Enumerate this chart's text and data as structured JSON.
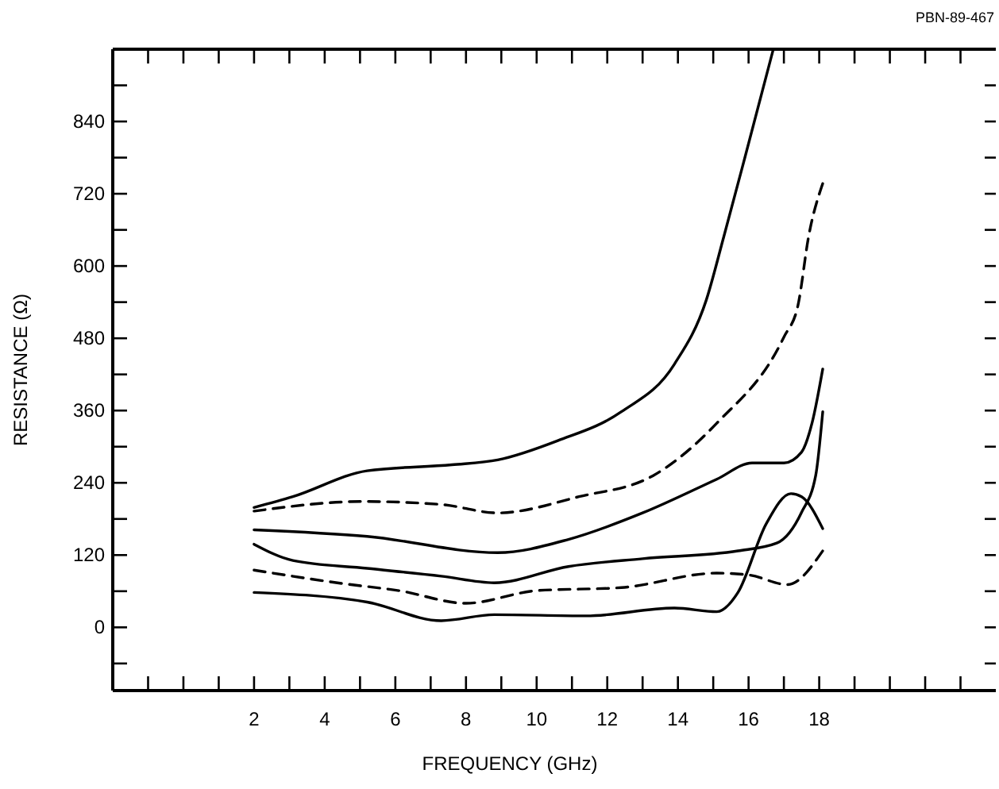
{
  "chart_data": {
    "type": "line",
    "xlabel": "FREQUENCY (GHz)",
    "ylabel": "RESISTANCE (Ω)",
    "annotations": [
      "PBN-89-467"
    ],
    "xlim": [
      -2,
      23
    ],
    "ylim": [
      -105,
      960
    ],
    "xticks": [
      {
        "value": -1,
        "label": null
      },
      {
        "value": 0,
        "label": null
      },
      {
        "value": 1,
        "label": null
      },
      2,
      {
        "value": 3,
        "label": null
      },
      4,
      {
        "value": 5,
        "label": null
      },
      6,
      {
        "value": 7,
        "label": null
      },
      8,
      {
        "value": 9,
        "label": null
      },
      10,
      {
        "value": 11,
        "label": null
      },
      12,
      {
        "value": 13,
        "label": null
      },
      14,
      {
        "value": 15,
        "label": null
      },
      16,
      {
        "value": 17,
        "label": null
      },
      18,
      {
        "value": 19,
        "label": null
      },
      {
        "value": 20,
        "label": null
      },
      {
        "value": 21,
        "label": null
      },
      {
        "value": 22,
        "label": null
      }
    ],
    "yticks": [
      {
        "value": -60,
        "label": null
      },
      0,
      {
        "value": 60,
        "label": null
      },
      120,
      {
        "value": 180,
        "label": null
      },
      240,
      {
        "value": 300,
        "label": null
      },
      360,
      {
        "value": 420,
        "label": null
      },
      480,
      {
        "value": 540,
        "label": null
      },
      600,
      {
        "value": 660,
        "label": null
      },
      720,
      {
        "value": 780,
        "label": null
      },
      840,
      {
        "value": 900,
        "label": null
      }
    ],
    "grid": false,
    "marker": "none",
    "series": [
      {
        "color": "#000000",
        "line_style": "solid",
        "x": [
          2,
          3.1,
          5.2,
          7.6,
          8.9,
          10.6,
          12.4,
          13.9,
          14.8,
          15.3,
          15.9,
          16.7
        ],
        "values": [
          199,
          217,
          260,
          270,
          278,
          310,
          358,
          437,
          543,
          649,
          781,
          960
        ]
      },
      {
        "color": "#000000",
        "line_style": "dashed",
        "x": [
          2,
          5.1,
          7.3,
          8.9,
          11.2,
          13.3,
          15.1,
          17,
          17.4,
          17.7,
          18.1
        ],
        "values": [
          193,
          209,
          204,
          190,
          217,
          252,
          339,
          482,
          535,
          649,
          737
        ]
      },
      {
        "color": "#000000",
        "line_style": "solid",
        "x": [
          2,
          5.2,
          8.9,
          10.9,
          13,
          15.1,
          16.1,
          17,
          17.5,
          17.8,
          18.1
        ],
        "values": [
          162,
          151,
          124,
          146,
          190,
          246,
          273,
          273,
          291,
          340,
          429
        ]
      },
      {
        "color": "#000000",
        "line_style": "solid",
        "x": [
          2,
          3.1,
          5.2,
          7.3,
          8.8,
          10.9,
          13,
          15.7,
          16.8,
          17.5,
          17.9,
          18.1
        ],
        "values": [
          138,
          111,
          98,
          85,
          74,
          101,
          114,
          127,
          140,
          191,
          252,
          358
        ]
      },
      {
        "color": "#000000",
        "line_style": "dashed",
        "x": [
          2,
          4.6,
          6.1,
          8,
          10,
          12.4,
          15.1,
          16,
          17.1,
          18.1
        ],
        "values": [
          95,
          72,
          61,
          40,
          61,
          66,
          90,
          87,
          71,
          127
        ]
      },
      {
        "color": "#000000",
        "line_style": "solid",
        "x": [
          2,
          5.2,
          7.3,
          8.8,
          11.4,
          13.9,
          15.1,
          15.7,
          16.5,
          17.2,
          17.5,
          18.1
        ],
        "values": [
          58,
          42,
          11,
          21,
          19,
          32,
          26,
          58,
          172,
          222,
          217,
          164
        ]
      }
    ]
  }
}
